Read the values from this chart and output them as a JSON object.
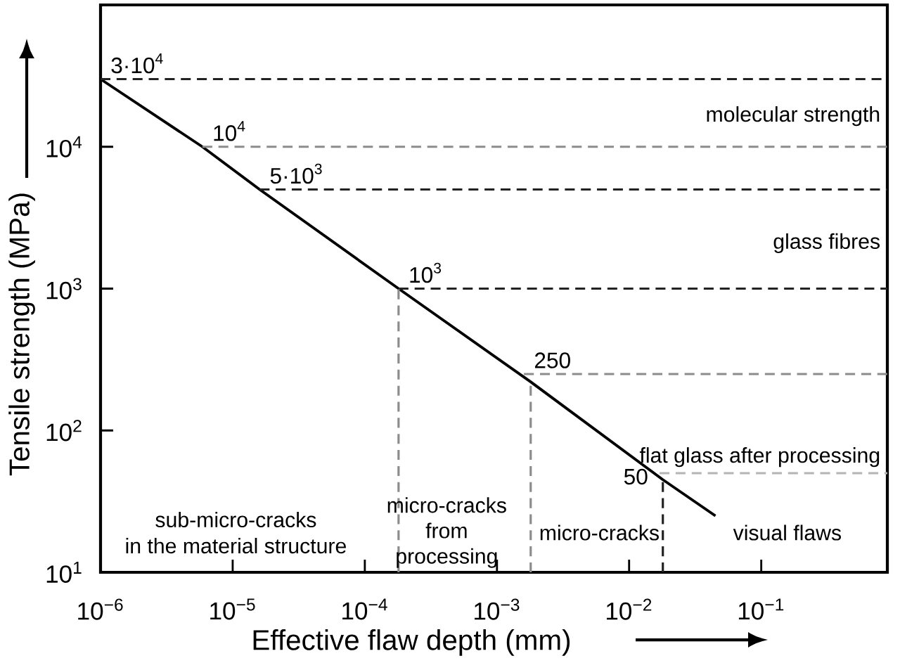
{
  "chart_data": {
    "type": "line",
    "xlabel": "Effective flaw depth (mm)",
    "ylabel": "Tensile strength (MPa)",
    "log": "xy",
    "xlim": [
      1e-06,
      0.9
    ],
    "ylim": [
      10,
      100000
    ],
    "xticks": [
      {
        "value": 1e-06,
        "label": "10$^{−6}$"
      },
      {
        "value": 1e-05,
        "label": "10$^{−5}$"
      },
      {
        "value": 0.0001,
        "label": "10$^{−4}$"
      },
      {
        "value": 0.001,
        "label": "10$^{−3}$"
      },
      {
        "value": 0.01,
        "label": "10$^{−2}$"
      },
      {
        "value": 0.1,
        "label": "10$^{−1}$"
      }
    ],
    "yticks": [
      {
        "value": 10,
        "label": "10$^{1}$"
      },
      {
        "value": 100,
        "label": "10$^{2}$"
      },
      {
        "value": 1000,
        "label": "10$^{3}$"
      },
      {
        "value": 10000,
        "label": "10$^{4}$"
      }
    ],
    "grid": false,
    "marker": "none",
    "series": [
      {
        "color": "#000000",
        "line_style": "solid",
        "x": [
          1e-06,
          5.9e-06,
          1.6e-05,
          0.00018,
          0.0018,
          0.018,
          0.045
        ],
        "values": [
          30000,
          10000,
          5000,
          1000,
          220,
          45,
          25
        ]
      },
      {
        "color": "#222222",
        "line_style": "dashed",
        "x": [
          1e-06,
          0.9
        ],
        "values": [
          30000,
          30000
        ]
      },
      {
        "color": "#8c8c8c",
        "line_style": "dashed",
        "x": [
          5.9e-06,
          0.9
        ],
        "values": [
          10000,
          10000
        ]
      },
      {
        "color": "#222222",
        "line_style": "dashed",
        "x": [
          1.6e-05,
          0.9
        ],
        "values": [
          5000,
          5000
        ]
      },
      {
        "color": "#222222",
        "line_style": "dashed",
        "x": [
          0.00018,
          0.9
        ],
        "values": [
          1000,
          1000
        ]
      },
      {
        "color": "#8c8c8c",
        "line_style": "dashed",
        "x": [
          0.0016,
          0.9
        ],
        "values": [
          250,
          250
        ]
      },
      {
        "color": "#b4b4b4",
        "line_style": "dashed",
        "x": [
          0.017,
          0.9
        ],
        "values": [
          50,
          50
        ]
      },
      {
        "color": "#8c8c8c",
        "line_style": "dashed",
        "x": [
          0.00018,
          0.00018
        ],
        "values": [
          10,
          1000
        ]
      },
      {
        "color": "#8c8c8c",
        "line_style": "dashed",
        "x": [
          0.0018,
          0.0018
        ],
        "values": [
          10,
          220
        ]
      },
      {
        "color": "#222222",
        "line_style": "dashed",
        "x": [
          0.018,
          0.018
        ],
        "values": [
          10,
          45
        ]
      }
    ],
    "annotations": [
      {
        "text": "3·10$^{4}$",
        "x": 1e-06,
        "y": 30000
      },
      {
        "text": "10$^{4}$",
        "x": 5.9e-06,
        "y": 10000
      },
      {
        "text": "5·10$^{3}$",
        "x": 1.6e-05,
        "y": 5000
      },
      {
        "text": "10$^{3}$",
        "x": 0.00018,
        "y": 1000
      },
      {
        "text": "250",
        "x": 0.0016,
        "y": 250
      },
      {
        "text": "50",
        "x": 0.017,
        "y": 50
      },
      "molecular strength",
      "glass fibres",
      "flat glass after processing",
      "sub-micro-cracks",
      "in the material structure",
      "micro-cracks from processing",
      "micro-cracks",
      "visual flaws"
    ]
  }
}
